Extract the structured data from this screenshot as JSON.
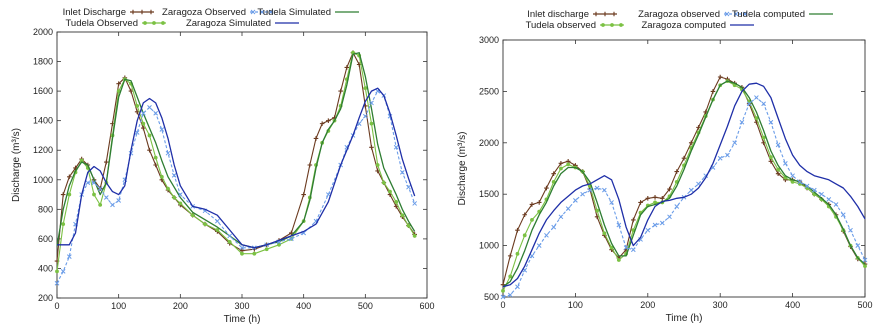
{
  "chart_data": [
    {
      "type": "line",
      "xlabel": "Time (h)",
      "ylabel": "Discharge (m³/s)",
      "xlim": [
        0,
        600
      ],
      "ylim": [
        200,
        2000
      ],
      "xticks": [
        0,
        100,
        200,
        300,
        400,
        500,
        600
      ],
      "yticks": [
        200,
        400,
        600,
        800,
        1000,
        1200,
        1400,
        1600,
        1800,
        2000
      ],
      "legend_position": "top",
      "series": [
        {
          "name": "Inlet Discharge",
          "color": "#6b3a1f",
          "marker": "plus",
          "x": [
            0,
            10,
            20,
            30,
            40,
            50,
            60,
            70,
            80,
            90,
            100,
            110,
            120,
            130,
            140,
            150,
            160,
            170,
            180,
            190,
            200,
            220,
            240,
            260,
            280,
            300,
            320,
            340,
            360,
            380,
            400,
            410,
            420,
            430,
            440,
            450,
            460,
            470,
            480,
            490,
            500,
            510,
            520,
            530,
            540,
            550,
            560,
            570,
            580
          ],
          "y": [
            450,
            900,
            1020,
            1080,
            1140,
            1100,
            1000,
            940,
            1120,
            1380,
            1650,
            1690,
            1600,
            1460,
            1350,
            1200,
            1100,
            1000,
            930,
            880,
            830,
            760,
            700,
            650,
            570,
            520,
            530,
            560,
            590,
            640,
            900,
            1100,
            1280,
            1380,
            1400,
            1420,
            1600,
            1760,
            1860,
            1780,
            1500,
            1220,
            1060,
            980,
            900,
            820,
            750,
            690,
            630
          ]
        },
        {
          "name": "Tudela Observed",
          "color": "#7bc143",
          "marker": "dot",
          "x": [
            0,
            10,
            20,
            30,
            40,
            50,
            60,
            70,
            80,
            90,
            100,
            110,
            120,
            130,
            140,
            150,
            160,
            170,
            180,
            190,
            200,
            220,
            240,
            260,
            280,
            300,
            320,
            340,
            360,
            380,
            400,
            410,
            420,
            430,
            440,
            450,
            460,
            470,
            480,
            490,
            500,
            510,
            520,
            530,
            540,
            550,
            560,
            570,
            580
          ],
          "y": [
            380,
            700,
            900,
            1050,
            1130,
            1080,
            900,
            830,
            980,
            1300,
            1600,
            1680,
            1650,
            1500,
            1380,
            1300,
            1150,
            1020,
            940,
            880,
            840,
            760,
            700,
            660,
            580,
            500,
            500,
            530,
            560,
            600,
            720,
            880,
            1100,
            1250,
            1330,
            1400,
            1500,
            1680,
            1860,
            1840,
            1620,
            1380,
            1100,
            980,
            920,
            850,
            760,
            690,
            620
          ]
        },
        {
          "name": "Tudela Simulated",
          "color": "#2e7d32",
          "marker": "none",
          "x": [
            0,
            10,
            20,
            30,
            40,
            50,
            60,
            70,
            80,
            90,
            100,
            110,
            120,
            130,
            140,
            150,
            160,
            170,
            180,
            190,
            200,
            220,
            240,
            260,
            280,
            300,
            320,
            340,
            360,
            380,
            400,
            410,
            420,
            430,
            440,
            450,
            460,
            470,
            480,
            490,
            500,
            510,
            520,
            530,
            540,
            550,
            560,
            570,
            580
          ],
          "y": [
            550,
            800,
            960,
            1060,
            1120,
            1100,
            1000,
            900,
            980,
            1280,
            1560,
            1680,
            1670,
            1560,
            1450,
            1350,
            1250,
            1130,
            1020,
            950,
            880,
            780,
            730,
            680,
            620,
            560,
            540,
            560,
            580,
            620,
            720,
            860,
            1080,
            1250,
            1340,
            1400,
            1480,
            1640,
            1850,
            1860,
            1700,
            1480,
            1240,
            1080,
            990,
            900,
            800,
            720,
            650
          ]
        },
        {
          "name": "Zaragoza Observed",
          "color": "#6a9ce8",
          "marker": "cross",
          "x": [
            0,
            10,
            20,
            30,
            40,
            50,
            60,
            70,
            80,
            90,
            100,
            110,
            120,
            130,
            140,
            150,
            160,
            170,
            180,
            190,
            200,
            220,
            240,
            260,
            280,
            300,
            320,
            340,
            360,
            380,
            400,
            420,
            440,
            460,
            470,
            480,
            490,
            500,
            510,
            520,
            530,
            540,
            550,
            560,
            570,
            580
          ],
          "y": [
            300,
            380,
            480,
            700,
            900,
            980,
            980,
            940,
            880,
            830,
            860,
            1000,
            1180,
            1320,
            1450,
            1490,
            1450,
            1340,
            1180,
            1030,
            900,
            820,
            790,
            720,
            620,
            540,
            540,
            560,
            580,
            600,
            640,
            720,
            900,
            1100,
            1220,
            1300,
            1380,
            1430,
            1520,
            1600,
            1570,
            1430,
            1220,
            1050,
            950,
            840
          ]
        },
        {
          "name": "Zaragoza Simulated",
          "color": "#1f2fa8",
          "marker": "none",
          "x": [
            0,
            10,
            20,
            30,
            40,
            50,
            60,
            70,
            80,
            90,
            100,
            110,
            120,
            130,
            140,
            150,
            160,
            170,
            180,
            190,
            200,
            220,
            240,
            260,
            280,
            300,
            320,
            340,
            360,
            380,
            400,
            420,
            440,
            460,
            480,
            490,
            500,
            510,
            520,
            530,
            540,
            550,
            560,
            570,
            580
          ],
          "y": [
            560,
            560,
            560,
            640,
            900,
            1050,
            1090,
            1060,
            980,
            920,
            900,
            960,
            1200,
            1400,
            1520,
            1550,
            1520,
            1420,
            1280,
            1100,
            960,
            820,
            800,
            760,
            660,
            560,
            540,
            560,
            590,
            620,
            650,
            700,
            850,
            1100,
            1300,
            1420,
            1530,
            1600,
            1620,
            1570,
            1450,
            1300,
            1140,
            1010,
            890
          ]
        }
      ]
    },
    {
      "type": "line",
      "xlabel": "Time (h)",
      "ylabel": "Discharge (m³/s)",
      "xlim": [
        0,
        500
      ],
      "ylim": [
        500,
        3000
      ],
      "xticks": [
        0,
        100,
        200,
        300,
        400,
        500
      ],
      "yticks": [
        500,
        1000,
        1500,
        2000,
        2500,
        3000
      ],
      "legend_position": "top",
      "series": [
        {
          "name": "Inlet discharge",
          "color": "#6b3a1f",
          "marker": "plus",
          "x": [
            0,
            10,
            20,
            30,
            40,
            50,
            60,
            70,
            80,
            90,
            100,
            110,
            120,
            130,
            140,
            150,
            160,
            170,
            180,
            190,
            200,
            210,
            220,
            230,
            240,
            250,
            260,
            270,
            280,
            290,
            300,
            310,
            320,
            330,
            340,
            350,
            360,
            370,
            380,
            390,
            400,
            410,
            420,
            430,
            440,
            450,
            460,
            470,
            480,
            490,
            500
          ],
          "y": [
            620,
            900,
            1150,
            1300,
            1400,
            1420,
            1560,
            1700,
            1800,
            1820,
            1780,
            1720,
            1550,
            1280,
            1100,
            960,
            880,
            960,
            1250,
            1420,
            1460,
            1470,
            1460,
            1550,
            1720,
            1850,
            2000,
            2150,
            2300,
            2500,
            2640,
            2620,
            2580,
            2540,
            2380,
            2200,
            2000,
            1820,
            1700,
            1640,
            1640,
            1620,
            1560,
            1500,
            1450,
            1400,
            1300,
            1140,
            990,
            870,
            820
          ]
        },
        {
          "name": "Tudela observed",
          "color": "#7bc143",
          "marker": "dot",
          "x": [
            0,
            10,
            20,
            30,
            40,
            50,
            60,
            70,
            80,
            90,
            100,
            110,
            120,
            130,
            140,
            150,
            160,
            170,
            180,
            190,
            200,
            210,
            220,
            230,
            240,
            250,
            260,
            270,
            280,
            290,
            300,
            310,
            320,
            330,
            340,
            350,
            360,
            370,
            380,
            390,
            400,
            410,
            420,
            430,
            440,
            450,
            460,
            470,
            480,
            490,
            500
          ],
          "y": [
            560,
            700,
            920,
            1100,
            1250,
            1330,
            1450,
            1620,
            1750,
            1790,
            1760,
            1720,
            1580,
            1340,
            1120,
            980,
            860,
            920,
            1150,
            1320,
            1390,
            1420,
            1420,
            1480,
            1620,
            1780,
            1950,
            2100,
            2260,
            2420,
            2560,
            2600,
            2560,
            2520,
            2400,
            2240,
            2050,
            1860,
            1740,
            1660,
            1620,
            1600,
            1560,
            1500,
            1450,
            1380,
            1280,
            1150,
            1000,
            880,
            800
          ]
        },
        {
          "name": "Tudela computed",
          "color": "#2e7d32",
          "marker": "none",
          "x": [
            0,
            10,
            20,
            30,
            40,
            50,
            60,
            70,
            80,
            90,
            100,
            110,
            120,
            130,
            140,
            150,
            160,
            170,
            180,
            190,
            200,
            210,
            220,
            230,
            240,
            250,
            260,
            270,
            280,
            290,
            300,
            310,
            320,
            330,
            340,
            350,
            360,
            370,
            380,
            390,
            400,
            410,
            420,
            430,
            440,
            450,
            460,
            470,
            480,
            490,
            500
          ],
          "y": [
            600,
            650,
            780,
            950,
            1150,
            1300,
            1420,
            1580,
            1700,
            1760,
            1760,
            1720,
            1620,
            1420,
            1200,
            1020,
            900,
            900,
            1100,
            1300,
            1380,
            1400,
            1420,
            1460,
            1580,
            1740,
            1920,
            2080,
            2250,
            2420,
            2560,
            2600,
            2580,
            2540,
            2440,
            2300,
            2120,
            1920,
            1780,
            1680,
            1640,
            1620,
            1580,
            1520,
            1460,
            1400,
            1300,
            1160,
            1000,
            880,
            820
          ]
        },
        {
          "name": "Zaragoza observed",
          "color": "#6a9ce8",
          "marker": "cross",
          "x": [
            0,
            10,
            20,
            30,
            40,
            50,
            60,
            70,
            80,
            90,
            100,
            110,
            120,
            130,
            140,
            150,
            160,
            170,
            180,
            190,
            200,
            210,
            220,
            230,
            240,
            250,
            260,
            270,
            280,
            290,
            300,
            310,
            320,
            330,
            340,
            350,
            360,
            370,
            380,
            390,
            400,
            410,
            420,
            430,
            440,
            450,
            460,
            470,
            480,
            490,
            500
          ],
          "y": [
            500,
            520,
            600,
            760,
            900,
            1000,
            1100,
            1180,
            1280,
            1360,
            1440,
            1500,
            1540,
            1560,
            1540,
            1420,
            1200,
            980,
            960,
            1060,
            1150,
            1200,
            1220,
            1280,
            1380,
            1470,
            1540,
            1600,
            1680,
            1760,
            1850,
            1880,
            2000,
            2200,
            2380,
            2440,
            2380,
            2200,
            1980,
            1800,
            1680,
            1620,
            1580,
            1540,
            1500,
            1450,
            1400,
            1300,
            1150,
            1000,
            860
          ]
        },
        {
          "name": "Zaragoza computed",
          "color": "#1f2fa8",
          "marker": "none",
          "x": [
            0,
            10,
            20,
            30,
            40,
            50,
            60,
            70,
            80,
            90,
            100,
            110,
            120,
            130,
            140,
            150,
            160,
            170,
            180,
            190,
            200,
            210,
            220,
            230,
            240,
            250,
            260,
            270,
            280,
            290,
            300,
            310,
            320,
            330,
            340,
            350,
            360,
            370,
            380,
            390,
            400,
            410,
            420,
            430,
            440,
            450,
            460,
            470,
            480,
            490,
            500
          ],
          "y": [
            600,
            620,
            680,
            800,
            960,
            1120,
            1250,
            1340,
            1420,
            1480,
            1540,
            1580,
            1600,
            1640,
            1680,
            1640,
            1450,
            1180,
            1000,
            1080,
            1250,
            1380,
            1430,
            1440,
            1460,
            1470,
            1500,
            1560,
            1660,
            1800,
            1980,
            2160,
            2360,
            2500,
            2570,
            2580,
            2550,
            2440,
            2240,
            2040,
            1880,
            1780,
            1720,
            1680,
            1660,
            1640,
            1600,
            1560,
            1480,
            1380,
            1260
          ]
        }
      ]
    }
  ]
}
